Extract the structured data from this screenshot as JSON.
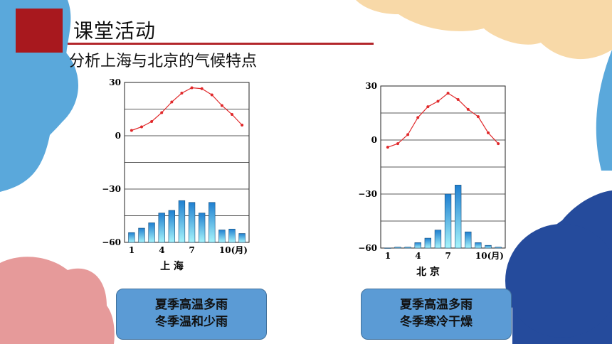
{
  "header": {
    "title": "课堂活动",
    "subtitle": "分析上海与北京的气候特点"
  },
  "colors": {
    "accent_red": "#a8181e",
    "temp_line": "#e0282a",
    "bar_top": "#1f7fd0",
    "bar_bottom": "#a6f4fb",
    "box_fill": "#5b9bd5"
  },
  "chart_data": [
    {
      "type": "bar+line",
      "title": "上 海",
      "y_ticks": [
        "30",
        "0",
        "−30",
        "−60"
      ],
      "x_ticks": [
        "1",
        "4",
        "7",
        "10(月)"
      ],
      "ylim": [
        -60,
        30
      ],
      "categories": [
        1,
        2,
        3,
        4,
        5,
        6,
        7,
        8,
        9,
        10,
        11,
        12
      ],
      "series": [
        {
          "kind": "line",
          "values": [
            3,
            5,
            8,
            13,
            19,
            24,
            27,
            26.5,
            23,
            17,
            12,
            6
          ]
        },
        {
          "kind": "bar",
          "values": [
            -54.5,
            -52,
            -49,
            -43.5,
            -42,
            -36.5,
            -37.5,
            -43.5,
            -37.5,
            -53,
            -52.5,
            -55
          ]
        }
      ]
    },
    {
      "type": "bar+line",
      "title": "北 京",
      "y_ticks": [
        "30",
        "0",
        "−30",
        "−60"
      ],
      "x_ticks": [
        "1",
        "4",
        "7",
        "10(月)"
      ],
      "ylim": [
        -60,
        30
      ],
      "categories": [
        1,
        2,
        3,
        4,
        5,
        6,
        7,
        8,
        9,
        10,
        11,
        12
      ],
      "series": [
        {
          "kind": "line",
          "values": [
            -4,
            -2,
            3,
            12.5,
            18.5,
            21.5,
            26,
            22.5,
            17,
            13,
            4,
            -2
          ]
        },
        {
          "kind": "bar",
          "values": [
            -60,
            -59.5,
            -59.5,
            -57,
            -54.5,
            -50,
            -30,
            -25,
            -51,
            -57,
            -58.5,
            -59.5
          ]
        }
      ]
    }
  ],
  "summaries": [
    {
      "line1": "夏季高温多雨",
      "line2": "冬季温和少雨"
    },
    {
      "line1": "夏季高温多雨",
      "line2": "冬季寒冷干燥"
    }
  ]
}
